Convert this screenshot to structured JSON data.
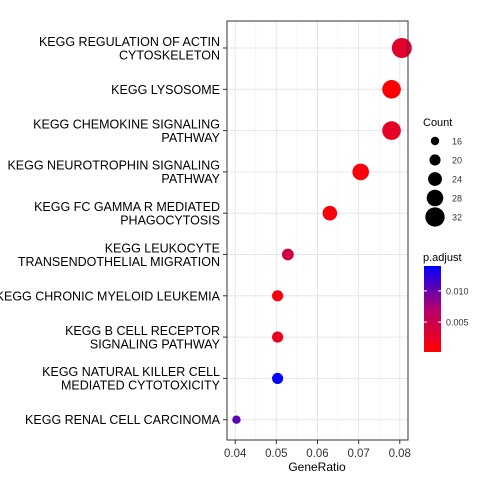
{
  "chart_data": {
    "type": "scatter",
    "xlabel": "GeneRatio",
    "xlim": [
      0.038,
      0.082
    ],
    "x_ticks": [
      0.04,
      0.05,
      0.06,
      0.07,
      0.08
    ],
    "x_tick_labels": [
      "0.04",
      "0.05",
      "0.06",
      "0.07",
      "0.08"
    ],
    "grid": true,
    "terms": [
      {
        "label": [
          "KEGG REGULATION OF ACTIN",
          "CYTOSKELETON"
        ],
        "gene_ratio": 0.0805,
        "count": 33,
        "p_adjust": 0.003
      },
      {
        "label": [
          "KEGG LYSOSOME"
        ],
        "gene_ratio": 0.078,
        "count": 31,
        "p_adjust": 0.0004
      },
      {
        "label": [
          "KEGG CHEMOKINE SIGNALING",
          "PATHWAY"
        ],
        "gene_ratio": 0.078,
        "count": 31,
        "p_adjust": 0.0025
      },
      {
        "label": [
          "KEGG NEUROTROPHIN SIGNALING",
          "PATHWAY"
        ],
        "gene_ratio": 0.0705,
        "count": 28,
        "p_adjust": 0.0006
      },
      {
        "label": [
          "KEGG FC GAMMA R MEDIATED",
          "PHAGOCYTOSIS"
        ],
        "gene_ratio": 0.063,
        "count": 25,
        "p_adjust": 0.0008
      },
      {
        "label": [
          "KEGG LEUKOCYTE",
          "TRANSENDOTHELIAL MIGRATION"
        ],
        "gene_ratio": 0.0528,
        "count": 21,
        "p_adjust": 0.0045
      },
      {
        "label": [
          "KEGG CHRONIC MYELOID LEUKEMIA"
        ],
        "gene_ratio": 0.0503,
        "count": 20,
        "p_adjust": 0.001
      },
      {
        "label": [
          "KEGG B CELL RECEPTOR",
          "SIGNALING PATHWAY"
        ],
        "gene_ratio": 0.0503,
        "count": 20,
        "p_adjust": 0.002
      },
      {
        "label": [
          "KEGG NATURAL KILLER CELL",
          "MEDIATED CYTOTOXICITY"
        ],
        "gene_ratio": 0.0503,
        "count": 20,
        "p_adjust": 0.0138
      },
      {
        "label": [
          "KEGG RENAL CELL CARCINOMA"
        ],
        "gene_ratio": 0.0403,
        "count": 16,
        "p_adjust": 0.0105
      }
    ],
    "size_legend": {
      "title": "Count",
      "values": [
        16,
        20,
        24,
        28,
        32
      ],
      "labels": [
        "16",
        "20",
        "24",
        "28",
        "32"
      ]
    },
    "color_legend": {
      "title": "p.adjust",
      "min": 0.0002,
      "max": 0.014,
      "low_color": "#ff0000",
      "high_color": "#0000ff",
      "ticks": [
        0.005,
        0.01
      ],
      "tick_labels": [
        "0.005",
        "0.010"
      ]
    }
  }
}
